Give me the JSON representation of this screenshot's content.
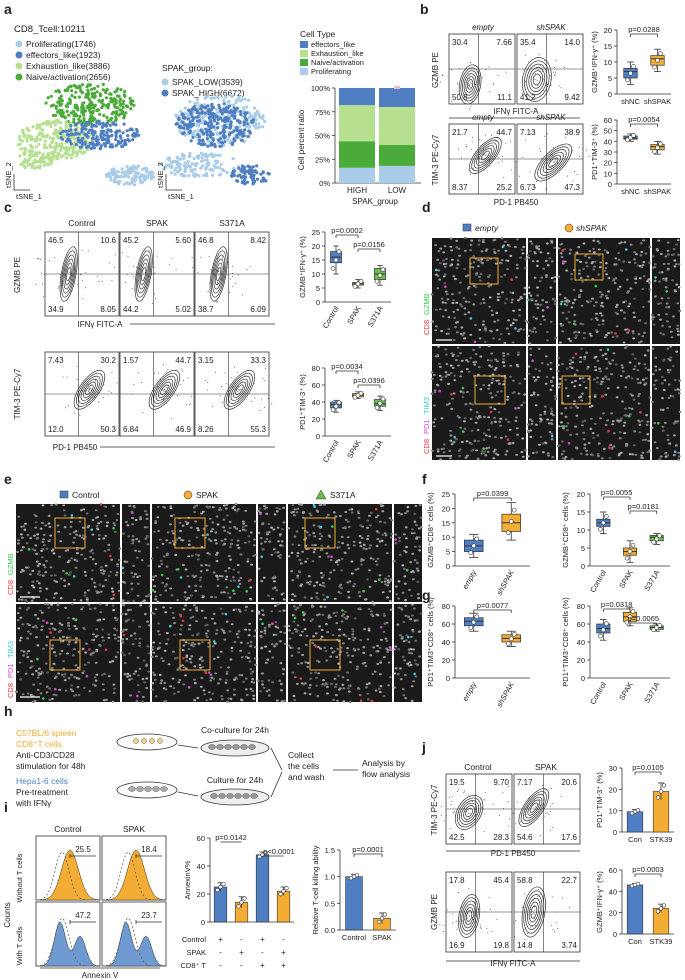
{
  "panel_letters": [
    "a",
    "b",
    "c",
    "d",
    "e",
    "f",
    "g",
    "h",
    "i",
    "j"
  ],
  "colors": {
    "blue": "#4f7fc2",
    "orange": "#f3ac34",
    "green": "#6abf4b",
    "lightgreen": "#b6e090",
    "lightblue": "#a9cde8",
    "pink": "#f7b6c8",
    "purple": "#b7a4d8",
    "gray": "#888888"
  },
  "a": {
    "header": "CD8_Tcell:10211",
    "clusters": [
      {
        "label": "Proliferating(1746)",
        "color": "#a9cde8"
      },
      {
        "label": "effectors_like(1923)",
        "color": "#4f7fc2"
      },
      {
        "label": "Exhaustion_like(3886)",
        "color": "#b6e090"
      },
      {
        "label": "Naive/activation(2656)",
        "color": "#4bab3a"
      }
    ],
    "spak_header": "SPAK_group:",
    "spak_groups": [
      {
        "label": "SPAK_LOW(3539)",
        "color": "#a9cde8"
      },
      {
        "label": "SPAK_HIGH(6672)",
        "color": "#4f7fc2"
      }
    ],
    "celltype_title": "Cell Type",
    "celltypes": [
      "effectors_like",
      "Exhaustion_like",
      "Naive/activation",
      "Proliferating"
    ],
    "axis_x": "tSNE_1",
    "axis_y": "tSNE_2",
    "bar_ylabel": "Cell percent ratio",
    "bar_xlabel": "SPAK_group",
    "bar_yticks": [
      "0%",
      "25%",
      "50%",
      "75%",
      "100%"
    ],
    "bar_categories": [
      "HIGH",
      "LOW"
    ]
  },
  "b": {
    "top": {
      "cond": [
        "empty",
        "shSPAK"
      ],
      "ylabel": "GZMB PE",
      "xlabel": "IFNγ FITC-A",
      "quads": [
        [
          "30.4",
          "7.66",
          "50.8",
          "11.1"
        ],
        [
          "35.4",
          "14.0",
          "41.2",
          "9.42"
        ]
      ]
    },
    "bottom": {
      "cond": [
        "empty",
        "shSPAK"
      ],
      "ylabel": "TIM-3 PE-Cy7",
      "xlabel": "PD-1 PB450",
      "quads": [
        [
          "21.7",
          "44.7",
          "8.37",
          "25.2"
        ],
        [
          "7.13",
          "38.9",
          "6.73",
          "47.3"
        ]
      ]
    },
    "box1": {
      "p": "p=0.0288",
      "ylabel": "GZMB⁺IFN-γ⁺ (%)",
      "yticks": [
        "0",
        "5",
        "10",
        "15",
        "20"
      ],
      "cats": [
        "shNC",
        "shSPAK"
      ]
    },
    "box2": {
      "p": "p=0.0054",
      "ylabel": "PD1⁺TIM-3⁺ (%)",
      "yticks": [
        "0",
        "10",
        "20",
        "30",
        "40",
        "50",
        "60"
      ],
      "cats": [
        "shNC",
        "shSPAK"
      ]
    }
  },
  "c": {
    "cond": [
      "Control",
      "SPAK",
      "S371A"
    ],
    "top": {
      "ylabel": "GZMB PE",
      "xlabel": "IFNγ FITC-A",
      "quads": [
        [
          "46.5",
          "10.6",
          "34.9",
          "8.05"
        ],
        [
          "45.2",
          "5.60",
          "44.2",
          "5.02"
        ],
        [
          "46.8",
          "8.42",
          "38.7",
          "6.09"
        ]
      ]
    },
    "bottom": {
      "ylabel": "TIM-3 PE-Cy7",
      "xlabel": "PD-1 PB450",
      "quads": [
        [
          "7.43",
          "30.2",
          "12.0",
          "50.3"
        ],
        [
          "1.57",
          "44.7",
          "6.84",
          "46.9"
        ],
        [
          "3.15",
          "33.3",
          "8.26",
          "55.3"
        ]
      ]
    },
    "box1": {
      "p1": "p=0.0002",
      "p2": "p=0.0156",
      "ylabel": "GZMB⁺IFN-γ⁺ (%)",
      "yticks": [
        "0",
        "5",
        "10",
        "15",
        "20",
        "25"
      ],
      "cats": [
        "Control",
        "SPAK",
        "S371A"
      ]
    },
    "box2": {
      "p1": "p=0.0034",
      "p2": "p=0.0396",
      "ylabel": "PD1⁺TIM-3⁺ (%)",
      "yticks": [
        "0",
        "20",
        "40",
        "60",
        "80"
      ],
      "cats": [
        "Control",
        "SPAK",
        "S371A"
      ]
    }
  },
  "d": {
    "legend": [
      "empty",
      "shSPAK"
    ],
    "row1": [
      "CD8",
      "GZMB",
      "DAPI"
    ],
    "row2": [
      "CD8",
      "PD1",
      "TIM3",
      "DAPI"
    ]
  },
  "e": {
    "legend": [
      "Control",
      "SPAK",
      "S371A"
    ],
    "row1": [
      "CD8",
      "GZMB",
      "DAPI"
    ],
    "row2": [
      "CD8",
      "PD1",
      "TIM3",
      "DAPI"
    ]
  },
  "f": {
    "left": {
      "p": "p=0.0399",
      "ylabel": "GZMB⁺CD8⁺ cells (%)",
      "yticks": [
        "0",
        "5",
        "10",
        "15",
        "20",
        "25"
      ],
      "cats": [
        "empty",
        "shSPAK"
      ]
    },
    "right": {
      "p1": "p=0.0055",
      "p2": "p=0.0181",
      "ylabel": "GZMB⁺CD8⁺ cells (%)",
      "yticks": [
        "0",
        "5",
        "10",
        "15",
        "20"
      ],
      "cats": [
        "Control",
        "SPAK",
        "S371A"
      ]
    }
  },
  "g": {
    "left": {
      "p": "p=0.0077",
      "ylabel": "PD1⁺TIM3⁺CD8⁺ cells (%)",
      "yticks": [
        "0",
        "20",
        "40",
        "60",
        "80"
      ],
      "cats": [
        "empty",
        "shSPAK"
      ]
    },
    "right": {
      "p1": "p=0.0318",
      "p2": "p=0.0065",
      "ylabel": "PD1⁺TIM3⁺CD8⁺ cells (%)",
      "yticks": [
        "0",
        "20",
        "40",
        "60",
        "80"
      ],
      "cats": [
        "Control",
        "SPAK",
        "S371A"
      ]
    }
  },
  "h": {
    "line1": "C57BL/6 spleen",
    "line2": "CD8⁺T cells",
    "line3": "Anti-CD3/CD28",
    "line4": "stimulation for 48h",
    "line5": "Hepa1-6 cells",
    "line6": "Pre-treatment",
    "line7": "with IFNγ",
    "coculture": "Co-culture for 24h",
    "culture": "Culture for 24h",
    "collect1": "Collect",
    "collect2": "the cells",
    "collect3": "and wash",
    "analysis1": "Analysis by",
    "analysis2": "flow analysis"
  },
  "i": {
    "cols": [
      "Control",
      "SPAK"
    ],
    "rows": [
      "Without T cells",
      "With T cells"
    ],
    "vals": [
      [
        "25.5",
        "18.4"
      ],
      [
        "47.2",
        "23.7"
      ]
    ],
    "ylabel": "Counts",
    "xlabel": "Annexin V",
    "bar1": {
      "p1": "p=0.0142",
      "p2": "p<0.0001",
      "ylabel": "AnnexinV%",
      "yticks": [
        "0",
        "20",
        "40",
        "60"
      ],
      "rows": [
        {
          "label": "Control",
          "marks": [
            "+",
            "-",
            "+",
            "-"
          ]
        },
        {
          "label": "SPAK",
          "marks": [
            "-",
            "+",
            "-",
            "+"
          ]
        },
        {
          "label": "CD8⁺ T",
          "marks": [
            "-",
            "-",
            "+",
            "+"
          ]
        }
      ]
    },
    "bar2": {
      "p": "p=0.0001",
      "ylabel": "Relative T-cell killing ability",
      "yticks": [
        "0.0",
        "0.5",
        "1.0",
        "1.5"
      ],
      "cats": [
        "Control",
        "SPAK"
      ]
    }
  },
  "j": {
    "cond": [
      "Control",
      "SPAK"
    ],
    "top": {
      "ylabel": "TIM-3 PE-Cy7",
      "xlabel": "PD-1 PB450",
      "quads": [
        [
          "19.5",
          "9.70",
          "42.5",
          "28.3"
        ],
        [
          "7.17",
          "20.6",
          "54.6",
          "17.6"
        ]
      ]
    },
    "bottom": {
      "ylabel": "GZMB PE",
      "xlabel": "IFNγ FITC-A",
      "quads": [
        [
          "17.8",
          "45.4",
          "16.9",
          "19.8"
        ],
        [
          "58.8",
          "22.7",
          "14.8",
          "3.74"
        ]
      ]
    },
    "bar1": {
      "p": "p=0.0105",
      "ylabel": "PD1⁺TIM-3⁺ (%)",
      "yticks": [
        "0",
        "10",
        "20",
        "30"
      ],
      "cats": [
        "Con",
        "STK39"
      ]
    },
    "bar2": {
      "p": "p=0.0003",
      "ylabel": "GZMB⁺IFN-γ⁺ (%)",
      "yticks": [
        "0",
        "20",
        "40",
        "60"
      ],
      "cats": [
        "Con",
        "STK39"
      ]
    }
  },
  "chart_data": [
    {
      "id": "a-bar",
      "type": "bar",
      "stacked": true,
      "categories": [
        "HIGH",
        "LOW"
      ],
      "series": [
        {
          "name": "Proliferating",
          "values": [
            0.16,
            0.18
          ]
        },
        {
          "name": "Naive/activation",
          "values": [
            0.28,
            0.22
          ]
        },
        {
          "name": "Exhaustion_like",
          "values": [
            0.38,
            0.4
          ]
        },
        {
          "name": "effectors_like",
          "values": [
            0.18,
            0.2
          ]
        }
      ],
      "xlabel": "SPAK_group",
      "ylabel": "Cell percent ratio",
      "ylim": [
        0,
        1
      ]
    },
    {
      "id": "b-box1",
      "type": "box",
      "categories": [
        "shNC",
        "shSPAK"
      ],
      "values": [
        [
          3,
          5,
          7,
          8,
          10
        ],
        [
          7,
          9,
          11,
          12,
          14
        ]
      ],
      "ylim": [
        0,
        20
      ]
    },
    {
      "id": "b-box2",
      "type": "box",
      "categories": [
        "shNC",
        "shSPAK"
      ],
      "values": [
        [
          40,
          42,
          43,
          45,
          47
        ],
        [
          28,
          32,
          35,
          37,
          40
        ]
      ],
      "ylim": [
        0,
        60
      ]
    },
    {
      "id": "c-box1",
      "type": "box",
      "categories": [
        "Control",
        "SPAK",
        "S371A"
      ],
      "values": [
        [
          10,
          14,
          16,
          18,
          20
        ],
        [
          5,
          6,
          6.5,
          7,
          8
        ],
        [
          6,
          8,
          10,
          12,
          13
        ]
      ],
      "ylim": [
        0,
        25
      ]
    },
    {
      "id": "c-box2",
      "type": "box",
      "categories": [
        "Control",
        "SPAK",
        "S371A"
      ],
      "values": [
        [
          28,
          33,
          37,
          40,
          42
        ],
        [
          44,
          46,
          48,
          50,
          52
        ],
        [
          30,
          35,
          38,
          43,
          47
        ]
      ],
      "ylim": [
        0,
        80
      ]
    },
    {
      "id": "f-left",
      "type": "box",
      "categories": [
        "empty",
        "shSPAK"
      ],
      "values": [
        [
          3,
          5,
          7,
          9,
          11
        ],
        [
          9,
          12,
          15,
          18,
          22
        ]
      ],
      "ylim": [
        0,
        25
      ]
    },
    {
      "id": "f-right",
      "type": "box",
      "categories": [
        "Control",
        "SPAK",
        "S371A"
      ],
      "values": [
        [
          9,
          11,
          12,
          13,
          15
        ],
        [
          1,
          3,
          4,
          5,
          7
        ],
        [
          6,
          7,
          8,
          8.5,
          9
        ]
      ],
      "ylim": [
        0,
        20
      ]
    },
    {
      "id": "g-left",
      "type": "box",
      "categories": [
        "empty",
        "shSPAK"
      ],
      "values": [
        [
          52,
          58,
          63,
          67,
          72
        ],
        [
          35,
          40,
          44,
          48,
          52
        ]
      ],
      "ylim": [
        0,
        80
      ]
    },
    {
      "id": "g-right",
      "type": "box",
      "categories": [
        "Control",
        "SPAK",
        "S371A"
      ],
      "values": [
        [
          42,
          50,
          55,
          60,
          65
        ],
        [
          58,
          63,
          68,
          73,
          78
        ],
        [
          52,
          54,
          56,
          58,
          60
        ]
      ],
      "ylim": [
        0,
        80
      ]
    },
    {
      "id": "i-bar1",
      "type": "bar",
      "values": [
        25,
        14,
        48,
        22
      ],
      "errors": [
        3,
        4,
        2,
        3
      ],
      "colors": [
        "#4f7fc2",
        "#f3ac34",
        "#4f7fc2",
        "#f3ac34"
      ],
      "ylim": [
        0,
        60
      ]
    },
    {
      "id": "i-bar2",
      "type": "bar",
      "categories": [
        "Control",
        "SPAK"
      ],
      "values": [
        1.0,
        0.22
      ],
      "errors": [
        0.04,
        0.1
      ],
      "ylim": [
        0,
        1.5
      ]
    },
    {
      "id": "j-bar1",
      "type": "bar",
      "categories": [
        "Con",
        "STK39"
      ],
      "values": [
        9.5,
        19
      ],
      "errors": [
        1,
        4
      ],
      "ylim": [
        0,
        30
      ]
    },
    {
      "id": "j-bar2",
      "type": "bar",
      "categories": [
        "Con",
        "STK39"
      ],
      "values": [
        46,
        24
      ],
      "errors": [
        1.5,
        4
      ],
      "ylim": [
        0,
        60
      ]
    }
  ]
}
